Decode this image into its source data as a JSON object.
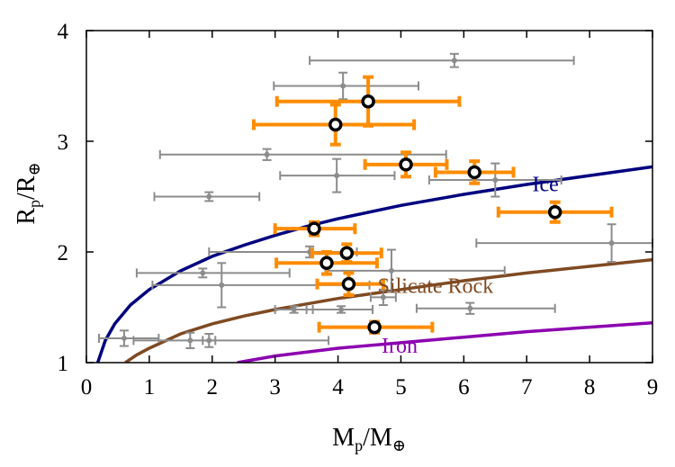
{
  "chart_data": {
    "type": "scatter",
    "title": "",
    "xlabel": {
      "main": "M",
      "sub1": "p",
      "slash": "/M",
      "sub2": "⊕"
    },
    "ylabel": {
      "main": "R",
      "sub1": "p",
      "slash": "/R",
      "sub2": "⊕"
    },
    "xlim": [
      0,
      9
    ],
    "ylim": [
      1,
      4
    ],
    "xticks": [
      "0",
      "1",
      "2",
      "3",
      "4",
      "5",
      "6",
      "7",
      "8",
      "9"
    ],
    "yticks": [
      "1",
      "2",
      "3",
      "4"
    ],
    "grid": false,
    "colors": {
      "orange": "#ff8c00",
      "gray": "#8c8c8c",
      "ice": "#00007f",
      "silicate": "#7f4a22",
      "iron": "#8b00b0"
    },
    "series": [
      {
        "style": "orange",
        "points": [
          {
            "x": 4.48,
            "y": 3.36,
            "xerr": [
              1.45,
              1.45
            ],
            "yerr": [
              0.22,
              0.22
            ]
          },
          {
            "x": 3.96,
            "y": 3.15,
            "xerr": [
              1.3,
              1.25
            ],
            "yerr": [
              0.18,
              0.18
            ]
          },
          {
            "x": 5.08,
            "y": 2.79,
            "xerr": [
              0.65,
              0.65
            ],
            "yerr": [
              0.11,
              0.11
            ]
          },
          {
            "x": 6.17,
            "y": 2.72,
            "xerr": [
              0.62,
              0.62
            ],
            "yerr": [
              0.1,
              0.1
            ]
          },
          {
            "x": 7.45,
            "y": 2.36,
            "xerr": [
              0.9,
              0.9
            ],
            "yerr": [
              0.09,
              0.09
            ]
          },
          {
            "x": 3.62,
            "y": 2.21,
            "xerr": [
              0.62,
              0.65
            ],
            "yerr": [
              0.06,
              0.06
            ]
          },
          {
            "x": 4.14,
            "y": 1.99,
            "xerr": [
              0.55,
              0.55
            ],
            "yerr": [
              0.08,
              0.08
            ]
          },
          {
            "x": 3.82,
            "y": 1.9,
            "xerr": [
              0.8,
              0.8
            ],
            "yerr": [
              0.1,
              0.1
            ]
          },
          {
            "x": 4.17,
            "y": 1.71,
            "xerr": [
              0.5,
              0.55
            ],
            "yerr": [
              0.1,
              0.1
            ]
          },
          {
            "x": 4.58,
            "y": 1.32,
            "xerr": [
              0.88,
              0.92
            ],
            "yerr": [
              0.05,
              0.05
            ]
          }
        ]
      },
      {
        "style": "gray",
        "points": [
          {
            "x": 5.85,
            "y": 3.73,
            "xerr": [
              2.3,
              1.9
            ],
            "yerr": [
              0.06,
              0.06
            ]
          },
          {
            "x": 4.08,
            "y": 3.5,
            "xerr": [
              1.1,
              1.2
            ],
            "yerr": [
              0.12,
              0.12
            ]
          },
          {
            "x": 2.87,
            "y": 2.88,
            "xerr": [
              1.7,
              2.85
            ],
            "yerr": [
              0.05,
              0.05
            ]
          },
          {
            "x": 3.98,
            "y": 2.69,
            "xerr": [
              0.9,
              0.92
            ],
            "yerr": [
              0.15,
              0.15
            ]
          },
          {
            "x": 6.5,
            "y": 2.65,
            "xerr": [
              1.05,
              1.05
            ],
            "yerr": [
              0.15,
              0.15
            ]
          },
          {
            "x": 1.95,
            "y": 2.5,
            "xerr": [
              0.87,
              0.8
            ],
            "yerr": [
              0.04,
              0.04
            ]
          },
          {
            "x": 8.35,
            "y": 2.08,
            "xerr": [
              2.15,
              0.65
            ],
            "yerr": [
              0.17,
              0.17
            ]
          },
          {
            "x": 3.55,
            "y": 2.0,
            "xerr": [
              1.6,
              0.75
            ],
            "yerr": [
              0.05,
              0.05
            ]
          },
          {
            "x": 1.85,
            "y": 1.81,
            "xerr": [
              1.05,
              1.38
            ],
            "yerr": [
              0.04,
              0.04
            ]
          },
          {
            "x": 4.85,
            "y": 1.83,
            "xerr": [
              1.05,
              1.8
            ],
            "yerr": [
              0.19,
              0.19
            ]
          },
          {
            "x": 2.15,
            "y": 1.7,
            "xerr": [
              1.1,
              2.35
            ],
            "yerr": [
              0.2,
              0.2
            ]
          },
          {
            "x": 4.72,
            "y": 1.59,
            "xerr": [
              0.2,
              0.2
            ],
            "yerr": [
              0.07,
              0.07
            ]
          },
          {
            "x": 6.1,
            "y": 1.49,
            "xerr": [
              0.85,
              1.35
            ],
            "yerr": [
              0.05,
              0.05
            ]
          },
          {
            "x": 3.3,
            "y": 1.48,
            "xerr": [
              0.3,
              0.3
            ],
            "yerr": [
              0.03,
              0.03
            ]
          },
          {
            "x": 4.05,
            "y": 1.48,
            "xerr": [
              0.55,
              0.5
            ],
            "yerr": [
              0.03,
              0.03
            ]
          },
          {
            "x": 0.6,
            "y": 1.22,
            "xerr": [
              0.4,
              0.55
            ],
            "yerr": [
              0.07,
              0.07
            ]
          },
          {
            "x": 1.65,
            "y": 1.2,
            "xerr": [
              0.9,
              2.2
            ],
            "yerr": [
              0.07,
              0.07
            ]
          },
          {
            "x": 1.95,
            "y": 1.2,
            "xerr": [
              0.1,
              0.1
            ],
            "yerr": [
              0.06,
              0.06
            ]
          }
        ]
      }
    ],
    "curves": [
      {
        "label": "Ice",
        "color": "#00007f",
        "label_at": [
          7.3,
          2.55
        ],
        "points": [
          [
            0.18,
            1.0
          ],
          [
            0.3,
            1.2
          ],
          [
            0.45,
            1.35
          ],
          [
            0.7,
            1.52
          ],
          [
            1.0,
            1.66
          ],
          [
            1.5,
            1.83
          ],
          [
            2.0,
            1.96
          ],
          [
            2.5,
            2.06
          ],
          [
            3.0,
            2.15
          ],
          [
            3.5,
            2.23
          ],
          [
            4.0,
            2.3
          ],
          [
            5.0,
            2.42
          ],
          [
            6.0,
            2.52
          ],
          [
            7.0,
            2.61
          ],
          [
            8.0,
            2.69
          ],
          [
            9.0,
            2.77
          ]
        ]
      },
      {
        "label": "Silicate Rock",
        "color": "#7f4a22",
        "label_at": [
          5.55,
          1.63
        ],
        "points": [
          [
            0.62,
            1.0
          ],
          [
            0.8,
            1.07
          ],
          [
            1.0,
            1.13
          ],
          [
            1.5,
            1.26
          ],
          [
            2.0,
            1.35
          ],
          [
            2.5,
            1.42
          ],
          [
            3.0,
            1.48
          ],
          [
            3.5,
            1.53
          ],
          [
            4.0,
            1.58
          ],
          [
            5.0,
            1.66
          ],
          [
            6.0,
            1.74
          ],
          [
            7.0,
            1.81
          ],
          [
            8.0,
            1.87
          ],
          [
            9.0,
            1.93
          ]
        ]
      },
      {
        "label": "Iron",
        "color": "#8b00b0",
        "label_at": [
          4.98,
          1.09
        ],
        "points": [
          [
            2.4,
            1.0
          ],
          [
            3.0,
            1.06
          ],
          [
            4.0,
            1.13
          ],
          [
            5.0,
            1.18
          ],
          [
            6.0,
            1.23
          ],
          [
            7.0,
            1.28
          ],
          [
            8.0,
            1.32
          ],
          [
            9.0,
            1.36
          ]
        ]
      }
    ]
  }
}
